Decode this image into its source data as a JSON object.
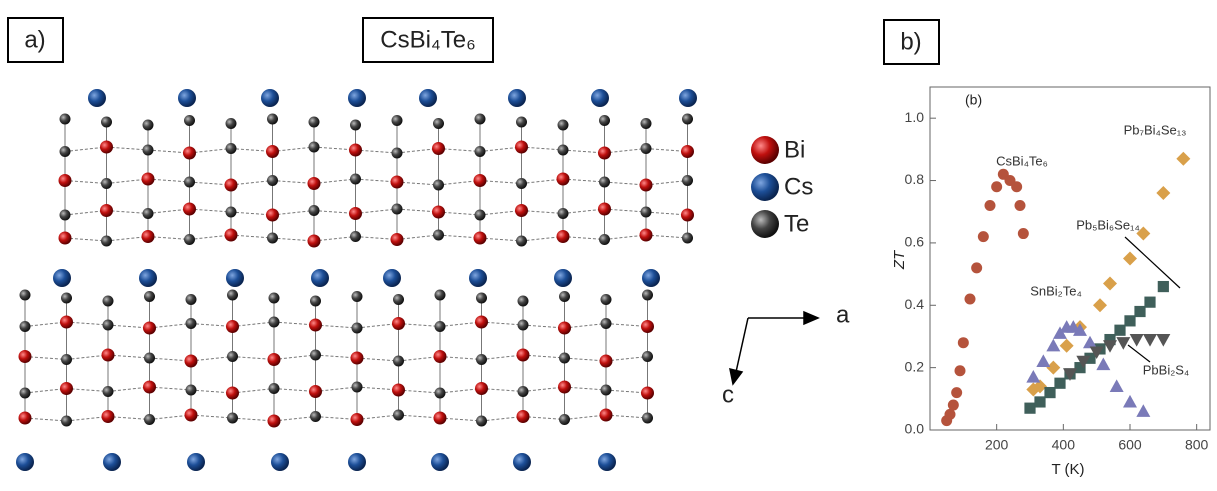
{
  "panel_a": {
    "label": "a)",
    "title": "CsBi₄Te₆",
    "legend": [
      "Bi",
      "Cs",
      "Te"
    ],
    "axes": [
      "a",
      "c"
    ]
  },
  "panel_b": {
    "label": "b)"
  },
  "chart_data": {
    "type": "scatter",
    "annotation": "(b)",
    "x_label": "T (K)",
    "y_label": "ZT",
    "xlim": [
      0,
      840
    ],
    "ylim": [
      0,
      1.1
    ],
    "xticks": [
      200,
      400,
      600,
      800
    ],
    "yticks": [
      {
        "value": 0,
        "label": "0.0"
      },
      0.2,
      0.4,
      0.6,
      0.8,
      {
        "value": 1,
        "label": "1.0"
      }
    ],
    "series": [
      {
        "name": "CsBi₄Te₆",
        "color": "#b5533c",
        "marker": "circle",
        "x": [
          50,
          60,
          70,
          80,
          90,
          100,
          120,
          140,
          160,
          180,
          200,
          220,
          240,
          260,
          270,
          280
        ],
        "values": [
          0.03,
          0.05,
          0.08,
          0.12,
          0.19,
          0.28,
          0.42,
          0.52,
          0.62,
          0.72,
          0.78,
          0.82,
          0.8,
          0.78,
          0.72,
          0.63
        ]
      },
      {
        "name": "Pb₇Bi₄Se₁₃",
        "color": "#d9a04a",
        "marker": "diamond",
        "x": [
          310,
          330,
          370,
          410,
          450,
          510,
          540,
          600,
          640,
          700,
          760
        ],
        "values": [
          0.13,
          0.14,
          0.2,
          0.27,
          0.33,
          0.4,
          0.47,
          0.55,
          0.63,
          0.76,
          0.87
        ]
      },
      {
        "name": "Pb₅Bi₆Se₁₄",
        "color": "#3f5f5a",
        "marker": "square",
        "x": [
          300,
          330,
          360,
          390,
          420,
          450,
          480,
          510,
          540,
          570,
          600,
          630,
          660,
          700
        ],
        "values": [
          0.07,
          0.09,
          0.12,
          0.15,
          0.18,
          0.2,
          0.23,
          0.26,
          0.29,
          0.32,
          0.35,
          0.38,
          0.41,
          0.46
        ]
      },
      {
        "name": "SnBi₂Te₄",
        "color": "#7a7ab8",
        "marker": "triangle",
        "x": [
          310,
          340,
          370,
          390,
          410,
          430,
          450,
          480,
          520,
          560,
          600,
          640
        ],
        "values": [
          0.17,
          0.22,
          0.27,
          0.31,
          0.33,
          0.33,
          0.32,
          0.28,
          0.21,
          0.14,
          0.09,
          0.06
        ]
      },
      {
        "name": "PbBi₂S₄",
        "color": "#555555",
        "marker": "triangle-down",
        "x": [
          420,
          460,
          500,
          540,
          580,
          620,
          660,
          700
        ],
        "values": [
          0.18,
          0.22,
          0.25,
          0.27,
          0.28,
          0.29,
          0.29,
          0.29
        ]
      }
    ]
  }
}
